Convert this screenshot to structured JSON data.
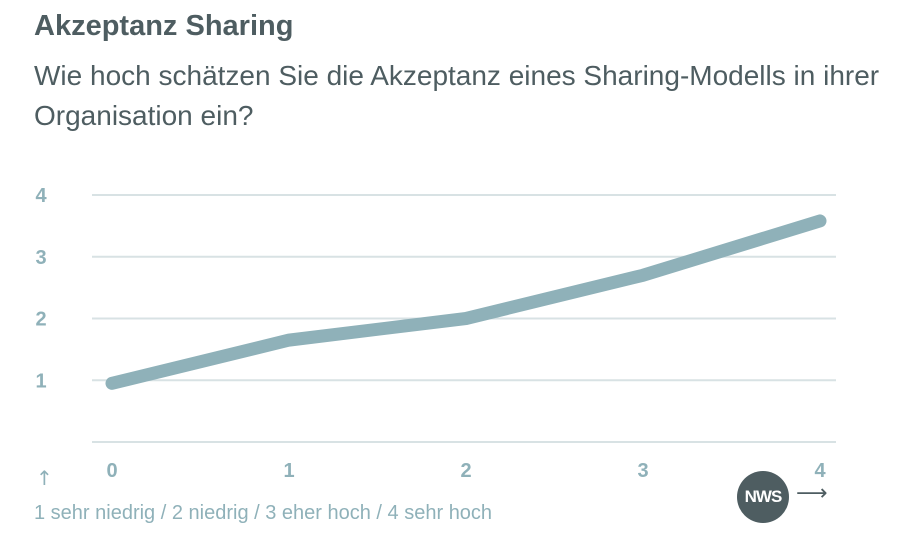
{
  "chart_data": {
    "type": "line",
    "title": "Akzeptanz Sharing",
    "subtitle": "Wie hoch schätzen Sie die Akzeptanz eines Sharing-Modells in ihrer Organisation ein?",
    "x": [
      0,
      1,
      2,
      3,
      4
    ],
    "x_tick_labels": [
      "0",
      "1",
      "2",
      "3",
      "4"
    ],
    "y_tick_labels": [
      "1",
      "2",
      "3",
      "4"
    ],
    "series": [
      {
        "values": [
          0.95,
          1.65,
          2.0,
          2.7,
          3.58
        ]
      }
    ],
    "xlim": [
      0,
      4
    ],
    "ylim": [
      0,
      4
    ],
    "grid": true,
    "note": "1 sehr niedrig / 2 niedrig / 3 eher hoch / 4 sehr hoch",
    "colors": {
      "line": "#8fb1b9",
      "grid": "#d8e2e4",
      "ticks": "#8fb1b9",
      "text": "#4e5d61"
    }
  },
  "logo": {
    "text": "NWS"
  },
  "icons": {
    "up_arrow": "↑",
    "right_arrow": "⟶"
  }
}
